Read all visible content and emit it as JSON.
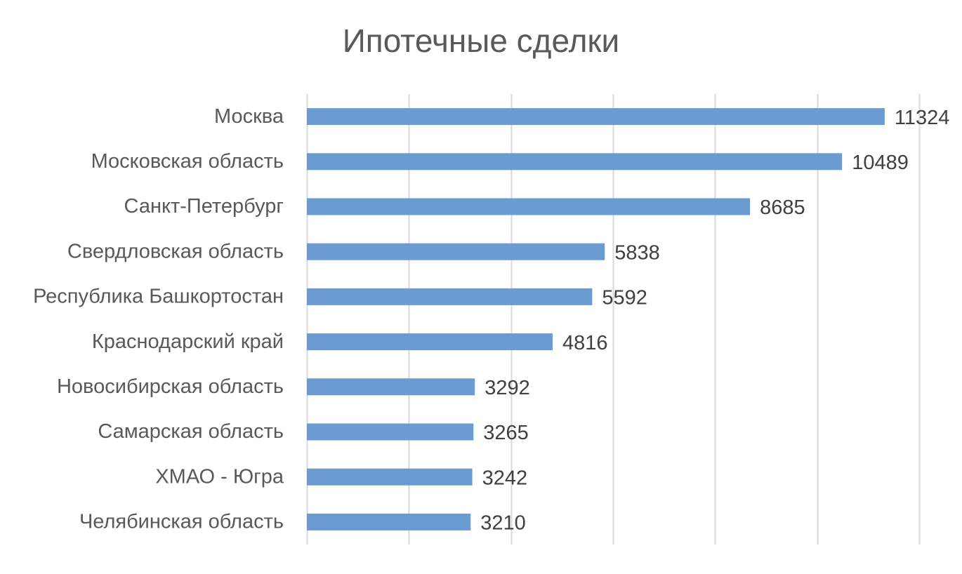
{
  "chart_data": {
    "type": "bar",
    "orientation": "horizontal",
    "title": "Ипотечные сделки",
    "categories": [
      "Москва",
      "Московская область",
      "Санкт-Петербург",
      "Свердловская область",
      "Республика Башкортостан",
      "Краснодарский край",
      "Новосибирская область",
      "Самарская область",
      "ХМАО - Югра",
      "Челябинская область"
    ],
    "values": [
      11324,
      10489,
      8685,
      5838,
      5592,
      4816,
      3292,
      3265,
      3242,
      3210
    ],
    "xlim": [
      0,
      12000
    ],
    "grid_step": 2000,
    "grid": true,
    "data_labels": true,
    "bar_color": "#6a9bd1",
    "xlabel": "",
    "ylabel": ""
  }
}
